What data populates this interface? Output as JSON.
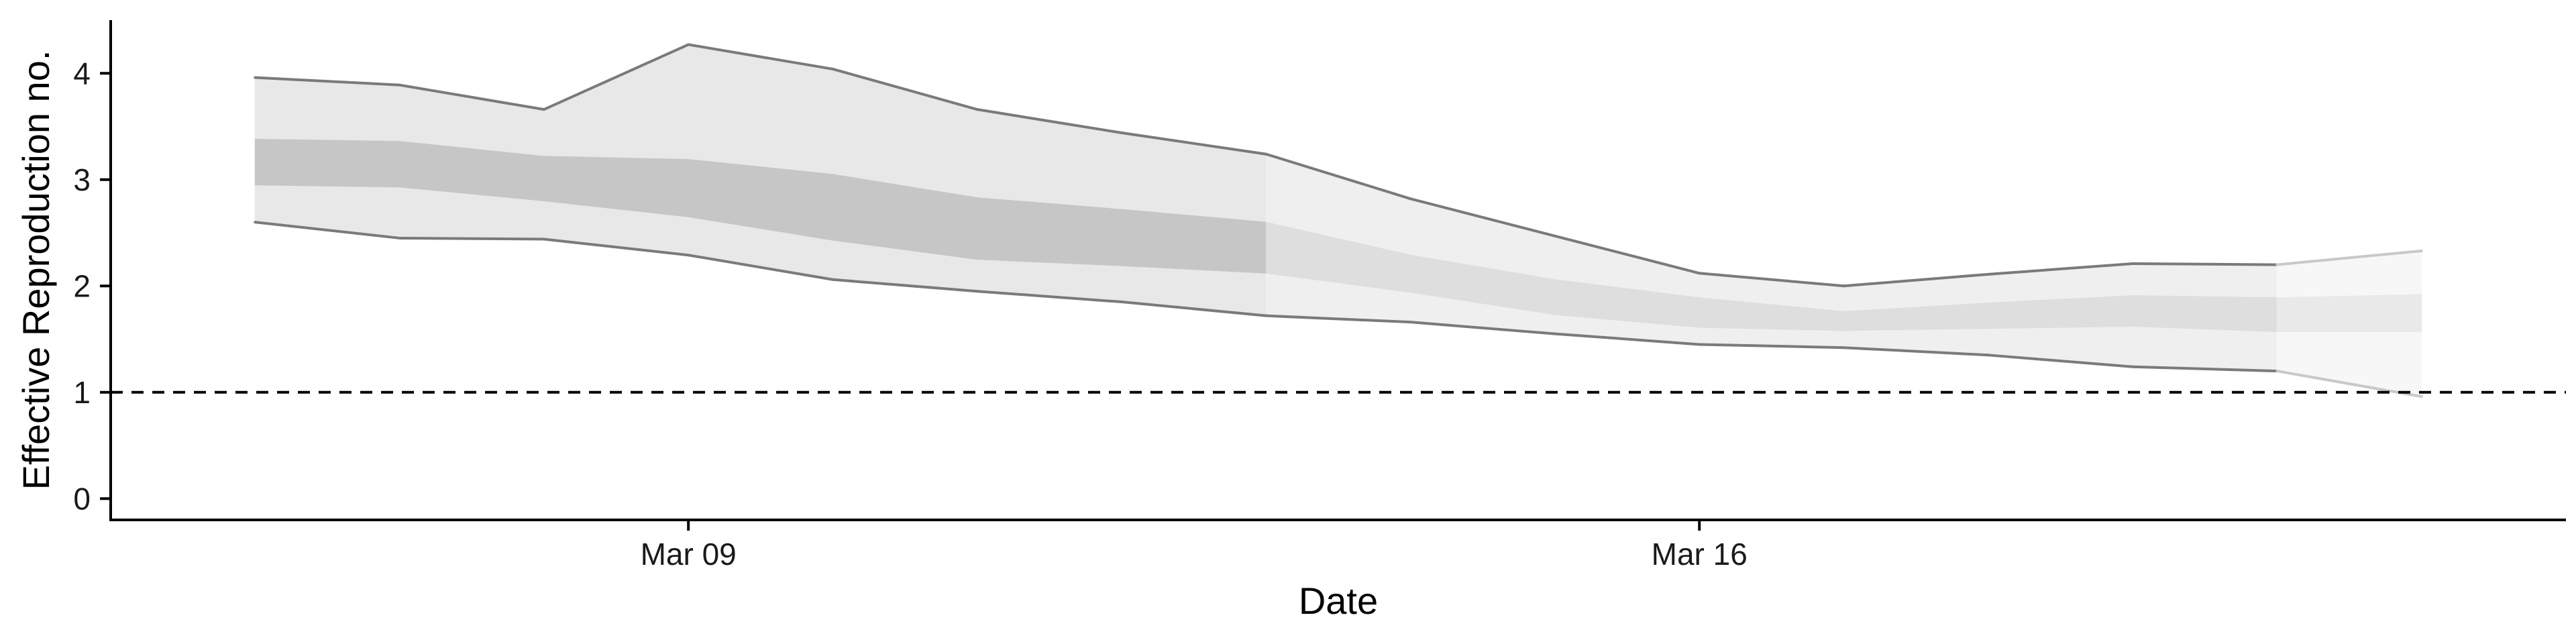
{
  "chart_data": {
    "type": "area",
    "title": "",
    "xlabel": "Date",
    "ylabel": "Effective Reproduction no.",
    "x_ticks": [
      "Mar 09",
      "Mar 16"
    ],
    "y_ticks": [
      0,
      1,
      2,
      3,
      4
    ],
    "ylim": [
      -0.2,
      4.5
    ],
    "xlim": [
      "2020-03-05",
      "2020-03-22"
    ],
    "grid": false,
    "legend": "none",
    "reference_line": {
      "y": 1,
      "style": "dashed"
    },
    "x": [
      "2020-03-06",
      "2020-03-07",
      "2020-03-08",
      "2020-03-09",
      "2020-03-10",
      "2020-03-11",
      "2020-03-12",
      "2020-03-13",
      "2020-03-14",
      "2020-03-15",
      "2020-03-16",
      "2020-03-17",
      "2020-03-18",
      "2020-03-19",
      "2020-03-20",
      "2020-03-21"
    ],
    "series": [
      {
        "values_low": [
          2.6,
          2.45,
          2.44,
          2.29,
          2.06,
          1.95,
          1.85,
          1.72,
          1.66,
          1.55,
          1.45,
          1.42,
          1.35,
          1.24,
          1.2,
          0.96
        ],
        "values_high": [
          3.96,
          3.89,
          3.66,
          4.27,
          4.04,
          3.66,
          3.44,
          3.24,
          2.82,
          2.47,
          2.12,
          2.0,
          2.11,
          2.21,
          2.2,
          2.33
        ]
      },
      {
        "values_low": [
          2.95,
          2.93,
          2.8,
          2.65,
          2.43,
          2.25,
          2.19,
          2.12,
          1.94,
          1.73,
          1.61,
          1.58,
          1.6,
          1.62,
          1.57,
          1.57
        ],
        "values_high": [
          3.38,
          3.36,
          3.22,
          3.19,
          3.05,
          2.83,
          2.72,
          2.6,
          2.29,
          2.06,
          1.89,
          1.76,
          1.84,
          1.91,
          1.89,
          1.92
        ]
      }
    ],
    "colors": {
      "outer_band": "#e8e8e8",
      "inner_band": "#c6c6c6",
      "outer_band_projected": "#efefef",
      "inner_band_projected": "#dedede",
      "outer_band_final": "#f7f7f7",
      "inner_band_final": "#e9e9e9",
      "bound_line": "#7a7a7a",
      "bound_line_final": "#c8c8c8",
      "axis": "#000000",
      "reference_line": "#000000"
    }
  }
}
